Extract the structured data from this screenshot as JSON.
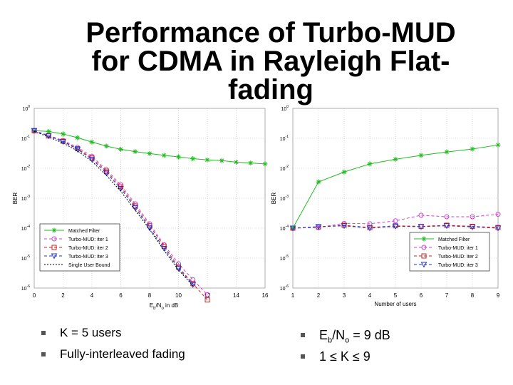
{
  "title": {
    "line1": "Performance of Turbo-MUD",
    "line2": "for CDMA in Rayleigh Flat-",
    "line3": "fading"
  },
  "colors": {
    "matched": "#22bb22",
    "iter1": "#cc44cc",
    "iter2": "#cc2222",
    "iter3": "#2233cc",
    "single": "#000000"
  },
  "chart_data": [
    {
      "type": "line",
      "yscale": "log",
      "xlabel_prefix": "E",
      "xlabel_sub": "b",
      "xlabel_mid": "/N",
      "xlabel_sub2": "o",
      "xlabel_suffix": " in dB",
      "ylabel": "BER",
      "xlim": [
        0,
        16
      ],
      "ylim_exp": [
        -6,
        0
      ],
      "xticks": [
        "0",
        "2",
        "4",
        "6",
        "8",
        "10",
        "12",
        "14",
        "16"
      ],
      "yticks": [
        "10",
        "10",
        "10",
        "10",
        "10",
        "10",
        "10"
      ],
      "yticks_exp": [
        "0",
        "-1",
        "-2",
        "-3",
        "-4",
        "-5",
        "-6"
      ],
      "legend_position": "bottom-left",
      "series": [
        {
          "name": "Matched Filter",
          "marker": "star",
          "color": "matched",
          "dash": "",
          "x": [
            0,
            1,
            2,
            3,
            4,
            5,
            6,
            7,
            8,
            9,
            10,
            11,
            12,
            13,
            14,
            15,
            16
          ],
          "y": [
            0.18,
            0.17,
            0.14,
            0.105,
            0.075,
            0.055,
            0.043,
            0.036,
            0.031,
            0.027,
            0.024,
            0.021,
            0.019,
            0.018,
            0.016,
            0.015,
            0.014
          ]
        },
        {
          "name": "Turbo-MUD: iter 1",
          "marker": "circle",
          "color": "iter1",
          "dash": "4,3",
          "x": [
            0,
            1,
            2,
            3,
            4,
            5,
            6,
            7,
            8,
            9,
            10,
            11,
            12
          ],
          "y": [
            0.18,
            0.125,
            0.085,
            0.05,
            0.025,
            0.009,
            0.0028,
            0.00065,
            0.00014,
            2.8e-05,
            6.5e-06,
            1.9e-06,
            6e-07
          ]
        },
        {
          "name": "Turbo-MUD: iter 2",
          "marker": "square",
          "color": "iter2",
          "dash": "4,3",
          "x": [
            0,
            1,
            2,
            3,
            4,
            5,
            6,
            7,
            8,
            9,
            10,
            11,
            12
          ],
          "y": [
            0.18,
            0.12,
            0.08,
            0.045,
            0.022,
            0.008,
            0.0024,
            0.00055,
            0.00012,
            2.5e-05,
            5e-06,
            1.4e-06,
            4e-07
          ]
        },
        {
          "name": "Turbo-MUD: iter 3",
          "marker": "triangle",
          "color": "iter3",
          "dash": "4,3",
          "x": [
            0,
            1,
            2,
            3,
            4,
            5,
            6,
            7,
            8,
            9,
            10,
            11
          ],
          "y": [
            0.18,
            0.12,
            0.078,
            0.043,
            0.02,
            0.007,
            0.0021,
            0.00048,
            0.0001,
            2.1e-05,
            4.5e-06,
            1.3e-06
          ]
        },
        {
          "name": "Single User Bound",
          "marker": "none",
          "color": "single",
          "dash": "2,2",
          "x": [
            0,
            1,
            2,
            3,
            4,
            5,
            6,
            7,
            8,
            9,
            10,
            11
          ],
          "y": [
            0.17,
            0.11,
            0.07,
            0.038,
            0.017,
            0.0058,
            0.0017,
            0.0004,
            9e-05,
            1.8e-05,
            4e-06,
            1.2e-06
          ]
        }
      ]
    },
    {
      "type": "line",
      "yscale": "log",
      "xlabel": "Number of users",
      "ylabel": "BER",
      "xlim": [
        1,
        9
      ],
      "ylim_exp": [
        -6,
        0
      ],
      "xticks": [
        "1",
        "2",
        "3",
        "4",
        "5",
        "6",
        "7",
        "8",
        "9"
      ],
      "yticks": [
        "10",
        "10",
        "10",
        "10",
        "10",
        "10",
        "10"
      ],
      "yticks_exp": [
        "0",
        "-1",
        "-2",
        "-3",
        "-4",
        "-5",
        "-6"
      ],
      "legend_position": "bottom-right",
      "series": [
        {
          "name": "Matched Filter",
          "marker": "star",
          "color": "matched",
          "dash": "",
          "x": [
            1,
            2,
            3,
            4,
            5,
            6,
            7,
            8,
            9
          ],
          "y": [
            0.0001,
            0.0035,
            0.0075,
            0.014,
            0.02,
            0.027,
            0.035,
            0.044,
            0.06
          ]
        },
        {
          "name": "Turbo-MUD: iter 1",
          "marker": "circle",
          "color": "iter1",
          "dash": "4,3",
          "x": [
            1,
            2,
            3,
            4,
            5,
            6,
            7,
            8,
            9
          ],
          "y": [
            0.0001,
            0.000105,
            0.000145,
            0.00014,
            0.000175,
            0.00027,
            0.00024,
            0.00024,
            0.00029
          ]
        },
        {
          "name": "Turbo-MUD: iter 2",
          "marker": "square",
          "color": "iter2",
          "dash": "4,3",
          "x": [
            1,
            2,
            3,
            4,
            5,
            6,
            7,
            8,
            9
          ],
          "y": [
            0.0001,
            0.00011,
            0.000125,
            0.000105,
            0.00012,
            0.000115,
            0.000125,
            0.000115,
            0.000105
          ]
        },
        {
          "name": "Turbo-MUD: iter 3",
          "marker": "triangle",
          "color": "iter3",
          "dash": "4,3",
          "x": [
            1,
            2,
            3,
            4,
            5,
            6,
            7,
            8,
            9
          ],
          "y": [
            0.0001,
            0.000112,
            0.00012,
            0.0001,
            0.000115,
            0.000112,
            0.00012,
            0.00011,
            0.0001
          ]
        }
      ]
    }
  ],
  "bullets_left": [
    "K = 5 users",
    "Fully-interleaved fading"
  ],
  "bullets_right": {
    "item1_prefix": "E",
    "item1_sub": "b",
    "item1_mid": "/N",
    "item1_sub2": "o",
    "item1_suffix": " = 9 dB",
    "item2": "1 ≤ K ≤ 9"
  }
}
